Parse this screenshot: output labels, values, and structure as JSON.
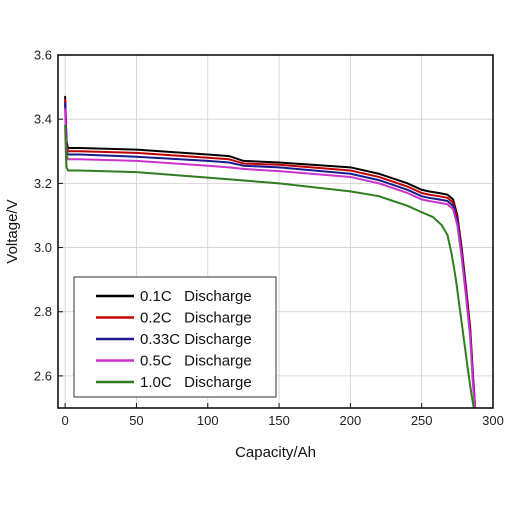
{
  "chart_data": {
    "type": "line",
    "title": "",
    "xlabel": "Capacity/Ah",
    "ylabel": "Voltage/V",
    "xlim": [
      -5,
      300
    ],
    "ylim": [
      2.5,
      3.6
    ],
    "xticks": [
      0,
      50,
      100,
      150,
      200,
      250,
      300
    ],
    "yticks": [
      2.6,
      2.8,
      3.0,
      3.2,
      3.4,
      3.6
    ],
    "xtick_labels": [
      "0",
      "50",
      "100",
      "150",
      "200",
      "250",
      "300"
    ],
    "ytick_labels": [
      "2.6",
      "2.8",
      "3.0",
      "3.2",
      "3.4",
      "3.6"
    ],
    "grid": true,
    "legend_position": "bottom-left",
    "series": [
      {
        "name": "0.1C   Discharge",
        "color": "#000000",
        "x": [
          0,
          0.5,
          1,
          2,
          4,
          10,
          50,
          100,
          115,
          125,
          150,
          200,
          220,
          240,
          250,
          255,
          262,
          268,
          272,
          275,
          278,
          281,
          284,
          286,
          287.5
        ],
        "y": [
          3.47,
          3.4,
          3.33,
          3.31,
          3.31,
          3.31,
          3.305,
          3.29,
          3.285,
          3.27,
          3.265,
          3.25,
          3.23,
          3.2,
          3.18,
          3.175,
          3.17,
          3.165,
          3.15,
          3.1,
          3.0,
          2.88,
          2.75,
          2.6,
          2.5
        ]
      },
      {
        "name": "0.2C   Discharge",
        "color": "#c00000",
        "x": [
          0,
          0.5,
          1,
          2,
          4,
          10,
          50,
          100,
          115,
          125,
          150,
          200,
          220,
          240,
          250,
          255,
          262,
          268,
          272,
          275,
          278,
          281,
          284,
          286,
          287.5
        ],
        "y": [
          3.46,
          3.39,
          3.32,
          3.3,
          3.3,
          3.3,
          3.295,
          3.28,
          3.275,
          3.262,
          3.258,
          3.24,
          3.22,
          3.19,
          3.17,
          3.165,
          3.16,
          3.155,
          3.14,
          3.09,
          2.99,
          2.87,
          2.74,
          2.59,
          2.5
        ]
      },
      {
        "name": "0.33C Discharge",
        "color": "#1a1a8c",
        "x": [
          0,
          0.5,
          1,
          2,
          4,
          10,
          50,
          100,
          115,
          125,
          150,
          200,
          220,
          240,
          250,
          255,
          262,
          268,
          272,
          275,
          278,
          281,
          284,
          286,
          287.5
        ],
        "y": [
          3.45,
          3.37,
          3.3,
          3.29,
          3.29,
          3.29,
          3.283,
          3.27,
          3.265,
          3.255,
          3.25,
          3.23,
          3.21,
          3.18,
          3.16,
          3.155,
          3.15,
          3.145,
          3.13,
          3.08,
          2.98,
          2.86,
          2.73,
          2.58,
          2.5
        ]
      },
      {
        "name": "0.5C   Discharge",
        "color": "#cc33cc",
        "x": [
          0,
          0.5,
          1,
          2,
          4,
          10,
          50,
          100,
          115,
          125,
          150,
          200,
          220,
          240,
          250,
          255,
          262,
          268,
          272,
          275,
          278,
          281,
          284,
          286,
          287.5
        ],
        "y": [
          3.43,
          3.35,
          3.29,
          3.275,
          3.275,
          3.275,
          3.27,
          3.255,
          3.25,
          3.245,
          3.238,
          3.22,
          3.2,
          3.17,
          3.15,
          3.145,
          3.14,
          3.135,
          3.12,
          3.07,
          2.97,
          2.85,
          2.72,
          2.57,
          2.5
        ]
      },
      {
        "name": "1.0C   Discharge",
        "color": "#2e7d1e",
        "x": [
          0,
          0.5,
          1,
          2,
          4,
          10,
          50,
          100,
          150,
          200,
          220,
          240,
          250,
          258,
          264,
          268,
          271,
          274,
          277,
          280,
          283,
          285,
          286.5
        ],
        "y": [
          3.38,
          3.3,
          3.25,
          3.24,
          3.24,
          3.24,
          3.235,
          3.218,
          3.2,
          3.175,
          3.16,
          3.13,
          3.11,
          3.095,
          3.07,
          3.04,
          2.98,
          2.9,
          2.8,
          2.7,
          2.6,
          2.54,
          2.5
        ]
      }
    ]
  }
}
